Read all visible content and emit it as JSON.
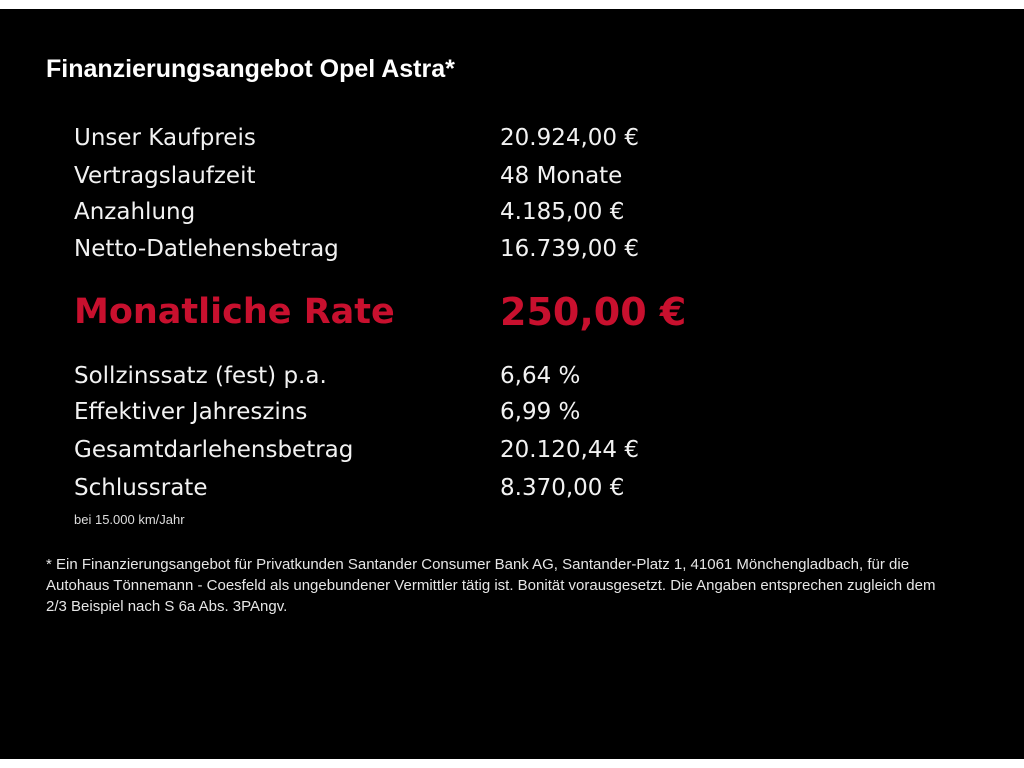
{
  "title": "Finanzierungsangebot Opel Astra*",
  "rows_top": [
    {
      "label": "Unser Kaufpreis",
      "value": "20.924,00 €"
    },
    {
      "label": "Vertragslaufzeit",
      "value": "48 Monate"
    },
    {
      "label": "Anzahlung",
      "value": "4.185,00 €"
    },
    {
      "label": "Netto-Datlehensbetrag",
      "value": "16.739,00 €"
    }
  ],
  "rate": {
    "label": "Monatliche Rate",
    "value": "250,00 €",
    "color": "#c8102e"
  },
  "rows_bottom": [
    {
      "label": "Sollzinssatz (fest) p.a.",
      "value": "6,64 %"
    },
    {
      "label": "Effektiver Jahreszins",
      "value": "6,99 %"
    },
    {
      "label": "Gesamtdarlehensbetrag",
      "value": "20.120,44 €"
    },
    {
      "label": "Schlussrate",
      "value": "8.370,00 €"
    }
  ],
  "note": "bei 15.000 km/Jahr",
  "footnote": "* Ein Finanzierungsangebot für Privatkunden Santander Consumer Bank AG, Santander-Platz 1, 41061 Mönchengladbach, für die Autohaus Tönnemann - Coesfeld als ungebundener Vermittler tätig ist. Bonität vorausgesetzt. Die Angaben entsprechen zugleich dem 2/3 Beispiel nach S 6a Abs. 3PAngv."
}
